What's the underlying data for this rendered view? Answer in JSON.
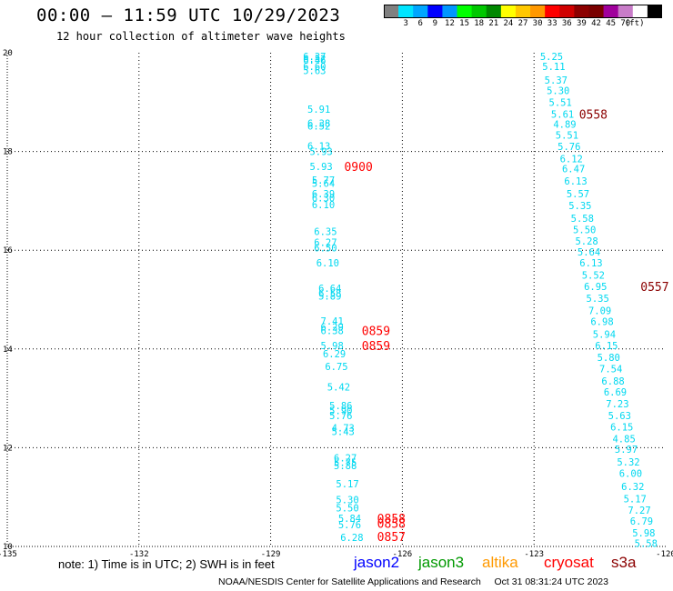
{
  "header": {
    "title": "00:00 – 11:59 UTC 10/29/2023",
    "subtitle": "12 hour collection of altimeter wave heights"
  },
  "colorbar": {
    "colors": [
      "#808080",
      "#00e5ff",
      "#00a6ff",
      "#0000ff",
      "#0096ff",
      "#00ff00",
      "#00c800",
      "#008800",
      "#ffff00",
      "#ffc800",
      "#ff9800",
      "#ff0000",
      "#d00000",
      "#8c0000",
      "#7a0000",
      "#a0009c",
      "#c87cc8",
      "#ffffff",
      "#000000"
    ],
    "labels": [
      "3",
      "6",
      "9",
      "12",
      "15",
      "18",
      "21",
      "24",
      "27",
      "30",
      "33",
      "36",
      "39",
      "42",
      "45",
      "70",
      "(ft)"
    ]
  },
  "footer": {
    "note": "note:  1) Time is in UTC;  2) SWH is in feet",
    "legend": [
      {
        "name": "jason2",
        "color": "#0000ff"
      },
      {
        "name": "jason3",
        "color": "#009900"
      },
      {
        "name": "altika",
        "color": "#ff9900"
      },
      {
        "name": "cryosat",
        "color": "#ff0000"
      },
      {
        "name": "s3a",
        "color": "#8b0000"
      }
    ],
    "credit": "NOAA/NESDIS Center for Satellite Applications and Research     Oct 31 08:31:24 UTC 2023"
  },
  "chart_data": {
    "type": "scatter",
    "title": "00:00 – 11:59 UTC 10/29/2023",
    "subtitle": "12 hour collection of altimeter wave heights",
    "xlabel": "",
    "ylabel": "",
    "xlim": [
      -135,
      -120
    ],
    "ylim": [
      10,
      20
    ],
    "x_ticks": [
      -135,
      -132,
      -129,
      -126,
      -123,
      -120
    ],
    "x_tick_labels": [
      "-135",
      "-132",
      "-129",
      "-126",
      "-123",
      "-120"
    ],
    "y_ticks": [
      10,
      12,
      14,
      16,
      18,
      20
    ],
    "y_tick_labels": [
      "10",
      "12",
      "14",
      "16",
      "18",
      "20"
    ],
    "grid": true,
    "value_color": "#00d8f0",
    "series": [
      {
        "points": [
          {
            "lon": -128.0,
            "lat": 19.93,
            "v": "6.37"
          },
          {
            "lon": -128.0,
            "lat": 19.85,
            "v": "6.46"
          },
          {
            "lon": -128.0,
            "lat": 19.88,
            "v": "6.52"
          },
          {
            "lon": -128.0,
            "lat": 19.72,
            "v": "6.60"
          },
          {
            "lon": -128.0,
            "lat": 19.64,
            "v": "5.63"
          },
          {
            "lon": -127.9,
            "lat": 18.86,
            "v": "5.91"
          },
          {
            "lon": -127.9,
            "lat": 18.57,
            "v": "6.38"
          },
          {
            "lon": -127.9,
            "lat": 18.52,
            "v": "6.52"
          },
          {
            "lon": -127.9,
            "lat": 18.11,
            "v": "6.13"
          },
          {
            "lon": -127.85,
            "lat": 18.0,
            "v": "5.93"
          },
          {
            "lon": -127.85,
            "lat": 17.7,
            "v": "5.93"
          },
          {
            "lon": -127.8,
            "lat": 17.42,
            "v": "5.77"
          },
          {
            "lon": -127.8,
            "lat": 17.36,
            "v": "5.64"
          },
          {
            "lon": -127.8,
            "lat": 17.15,
            "v": "6.39"
          },
          {
            "lon": -127.8,
            "lat": 17.06,
            "v": "6.30"
          },
          {
            "lon": -127.8,
            "lat": 16.92,
            "v": "6.10"
          },
          {
            "lon": -127.75,
            "lat": 16.38,
            "v": "6.35"
          },
          {
            "lon": -127.75,
            "lat": 16.16,
            "v": "6.27"
          },
          {
            "lon": -127.75,
            "lat": 16.05,
            "v": "6.50"
          },
          {
            "lon": -127.7,
            "lat": 15.75,
            "v": "6.10"
          },
          {
            "lon": -127.65,
            "lat": 15.23,
            "v": "6.64"
          },
          {
            "lon": -127.65,
            "lat": 15.13,
            "v": "6.58"
          },
          {
            "lon": -127.65,
            "lat": 15.07,
            "v": "5.89"
          },
          {
            "lon": -127.6,
            "lat": 14.57,
            "v": "7.41"
          },
          {
            "lon": -127.6,
            "lat": 14.45,
            "v": "6.29"
          },
          {
            "lon": -127.6,
            "lat": 14.37,
            "v": "6.38"
          },
          {
            "lon": -127.6,
            "lat": 14.07,
            "v": "5.98"
          },
          {
            "lon": -127.55,
            "lat": 13.9,
            "v": "6.29"
          },
          {
            "lon": -127.5,
            "lat": 13.65,
            "v": "6.75"
          },
          {
            "lon": -127.45,
            "lat": 13.23,
            "v": "5.42"
          },
          {
            "lon": -127.4,
            "lat": 12.85,
            "v": "5.86"
          },
          {
            "lon": -127.4,
            "lat": 12.75,
            "v": "5.90"
          },
          {
            "lon": -127.4,
            "lat": 12.65,
            "v": "5.76"
          },
          {
            "lon": -127.35,
            "lat": 12.4,
            "v": "4.73"
          },
          {
            "lon": -127.35,
            "lat": 12.33,
            "v": "5.43"
          },
          {
            "lon": -127.3,
            "lat": 11.8,
            "v": "6.27"
          },
          {
            "lon": -127.3,
            "lat": 11.7,
            "v": "5.75"
          },
          {
            "lon": -127.3,
            "lat": 11.64,
            "v": "5.88"
          },
          {
            "lon": -127.25,
            "lat": 11.27,
            "v": "5.17"
          },
          {
            "lon": -127.25,
            "lat": 10.95,
            "v": "5.30"
          },
          {
            "lon": -127.25,
            "lat": 10.78,
            "v": "5.50"
          },
          {
            "lon": -127.2,
            "lat": 10.57,
            "v": "5.84"
          },
          {
            "lon": -127.2,
            "lat": 10.44,
            "v": "5.76"
          },
          {
            "lon": -127.15,
            "lat": 10.18,
            "v": "6.28"
          }
        ]
      },
      {
        "points": [
          {
            "lon": -122.6,
            "lat": 19.93,
            "v": "5.25"
          },
          {
            "lon": -122.55,
            "lat": 19.72,
            "v": "5.11"
          },
          {
            "lon": -122.5,
            "lat": 19.45,
            "v": "5.37"
          },
          {
            "lon": -122.45,
            "lat": 19.24,
            "v": "5.30"
          },
          {
            "lon": -122.4,
            "lat": 19.0,
            "v": "5.51"
          },
          {
            "lon": -122.35,
            "lat": 18.76,
            "v": "5.61"
          },
          {
            "lon": -122.3,
            "lat": 18.55,
            "v": "4.89"
          },
          {
            "lon": -122.25,
            "lat": 18.33,
            "v": "5.51"
          },
          {
            "lon": -122.2,
            "lat": 18.1,
            "v": "5.76"
          },
          {
            "lon": -122.15,
            "lat": 17.85,
            "v": "6.12"
          },
          {
            "lon": -122.1,
            "lat": 17.65,
            "v": "6.47"
          },
          {
            "lon": -122.05,
            "lat": 17.4,
            "v": "6.13"
          },
          {
            "lon": -122.0,
            "lat": 17.15,
            "v": "5.57"
          },
          {
            "lon": -121.95,
            "lat": 16.91,
            "v": "5.35"
          },
          {
            "lon": -121.9,
            "lat": 16.65,
            "v": "5.58"
          },
          {
            "lon": -121.85,
            "lat": 16.42,
            "v": "5.50"
          },
          {
            "lon": -121.8,
            "lat": 16.19,
            "v": "5.28"
          },
          {
            "lon": -121.75,
            "lat": 15.97,
            "v": "5.64"
          },
          {
            "lon": -121.7,
            "lat": 15.75,
            "v": "6.13"
          },
          {
            "lon": -121.65,
            "lat": 15.5,
            "v": "5.52"
          },
          {
            "lon": -121.6,
            "lat": 15.27,
            "v": "6.95"
          },
          {
            "lon": -121.55,
            "lat": 15.03,
            "v": "5.35"
          },
          {
            "lon": -121.5,
            "lat": 14.78,
            "v": "7.09"
          },
          {
            "lon": -121.45,
            "lat": 14.56,
            "v": "6.98"
          },
          {
            "lon": -121.4,
            "lat": 14.3,
            "v": "5.94"
          },
          {
            "lon": -121.35,
            "lat": 14.07,
            "v": "6.15"
          },
          {
            "lon": -121.3,
            "lat": 13.83,
            "v": "5.80"
          },
          {
            "lon": -121.25,
            "lat": 13.6,
            "v": "7.54"
          },
          {
            "lon": -121.2,
            "lat": 13.35,
            "v": "6.88"
          },
          {
            "lon": -121.15,
            "lat": 13.13,
            "v": "6.69"
          },
          {
            "lon": -121.1,
            "lat": 12.89,
            "v": "7.23"
          },
          {
            "lon": -121.05,
            "lat": 12.65,
            "v": "5.63"
          },
          {
            "lon": -121.0,
            "lat": 12.42,
            "v": "6.15"
          },
          {
            "lon": -120.95,
            "lat": 12.18,
            "v": "4.85"
          },
          {
            "lon": -120.9,
            "lat": 11.97,
            "v": "5.97"
          },
          {
            "lon": -120.85,
            "lat": 11.71,
            "v": "5.32"
          },
          {
            "lon": -120.8,
            "lat": 11.48,
            "v": "6.00"
          },
          {
            "lon": -120.75,
            "lat": 11.22,
            "v": "6.32"
          },
          {
            "lon": -120.7,
            "lat": 10.97,
            "v": "5.17"
          },
          {
            "lon": -120.6,
            "lat": 10.74,
            "v": "7.27"
          },
          {
            "lon": -120.55,
            "lat": 10.52,
            "v": "6.79"
          },
          {
            "lon": -120.5,
            "lat": 10.28,
            "v": "5.98"
          },
          {
            "lon": -120.45,
            "lat": 10.06,
            "v": "5.58"
          }
        ]
      }
    ],
    "time_labels": [
      {
        "lon": -127.0,
        "lat": 17.7,
        "text": "0900",
        "color": "#ff0000"
      },
      {
        "lon": -126.6,
        "lat": 14.37,
        "text": "0859",
        "color": "#ff0000"
      },
      {
        "lon": -126.6,
        "lat": 14.07,
        "text": "0859",
        "color": "#ff0000"
      },
      {
        "lon": -126.25,
        "lat": 10.57,
        "text": "0858",
        "color": "#ff0000"
      },
      {
        "lon": -126.25,
        "lat": 10.47,
        "text": "0858",
        "color": "#ff0000"
      },
      {
        "lon": -126.25,
        "lat": 10.2,
        "text": "0857",
        "color": "#ff0000"
      },
      {
        "lon": -121.65,
        "lat": 18.76,
        "text": "0558",
        "color": "#8b0000"
      },
      {
        "lon": -120.25,
        "lat": 15.27,
        "text": "0557",
        "color": "#8b0000"
      }
    ]
  }
}
